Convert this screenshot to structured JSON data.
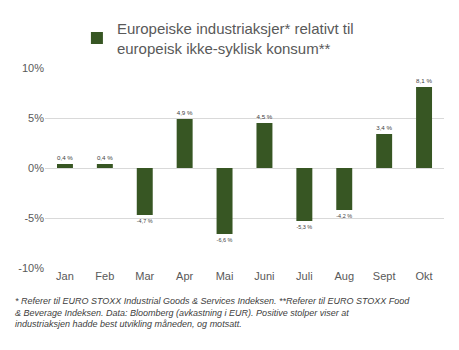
{
  "chart_data": {
    "type": "bar",
    "categories": [
      "Jan",
      "Feb",
      "Mar",
      "Apr",
      "Mai",
      "Juni",
      "Juli",
      "Aug",
      "Sept",
      "Okt"
    ],
    "series": [
      {
        "name": "Europeiske industriaksjer* relativt til europeisk ikke-syklisk konsum**",
        "color": "#375623",
        "values": [
          0.4,
          0.4,
          -4.7,
          4.9,
          -6.6,
          4.5,
          -5.3,
          -4.2,
          3.4,
          8.1
        ],
        "value_labels": [
          "0,4 %",
          "0,4 %",
          "-4,7 %",
          "4,9 %",
          "-6,6 %",
          "4,5 %",
          "-5,3 %",
          "-4,2 %",
          "3,4 %",
          "8,1 %"
        ]
      }
    ],
    "ylim": [
      -10,
      10
    ],
    "yticks": [
      {
        "value": -10,
        "label": "-10%"
      },
      {
        "value": -5,
        "label": "-5%"
      },
      {
        "value": 0,
        "label": "0%"
      },
      {
        "value": 5,
        "label": "5%"
      },
      {
        "value": 10,
        "label": "10%"
      }
    ],
    "grid": true,
    "data_labels": true,
    "legend": "top",
    "annotations": [
      "* Referer til EURO STOXX Industrial Goods & Services Indeksen. **Referer til EURO STOXX Food & Beverage Indeksen. Data: Bloomberg (avkastning i EUR). Positive stolper viser at industriaksjen hadde best utvikling måneden, og motsatt."
    ]
  }
}
